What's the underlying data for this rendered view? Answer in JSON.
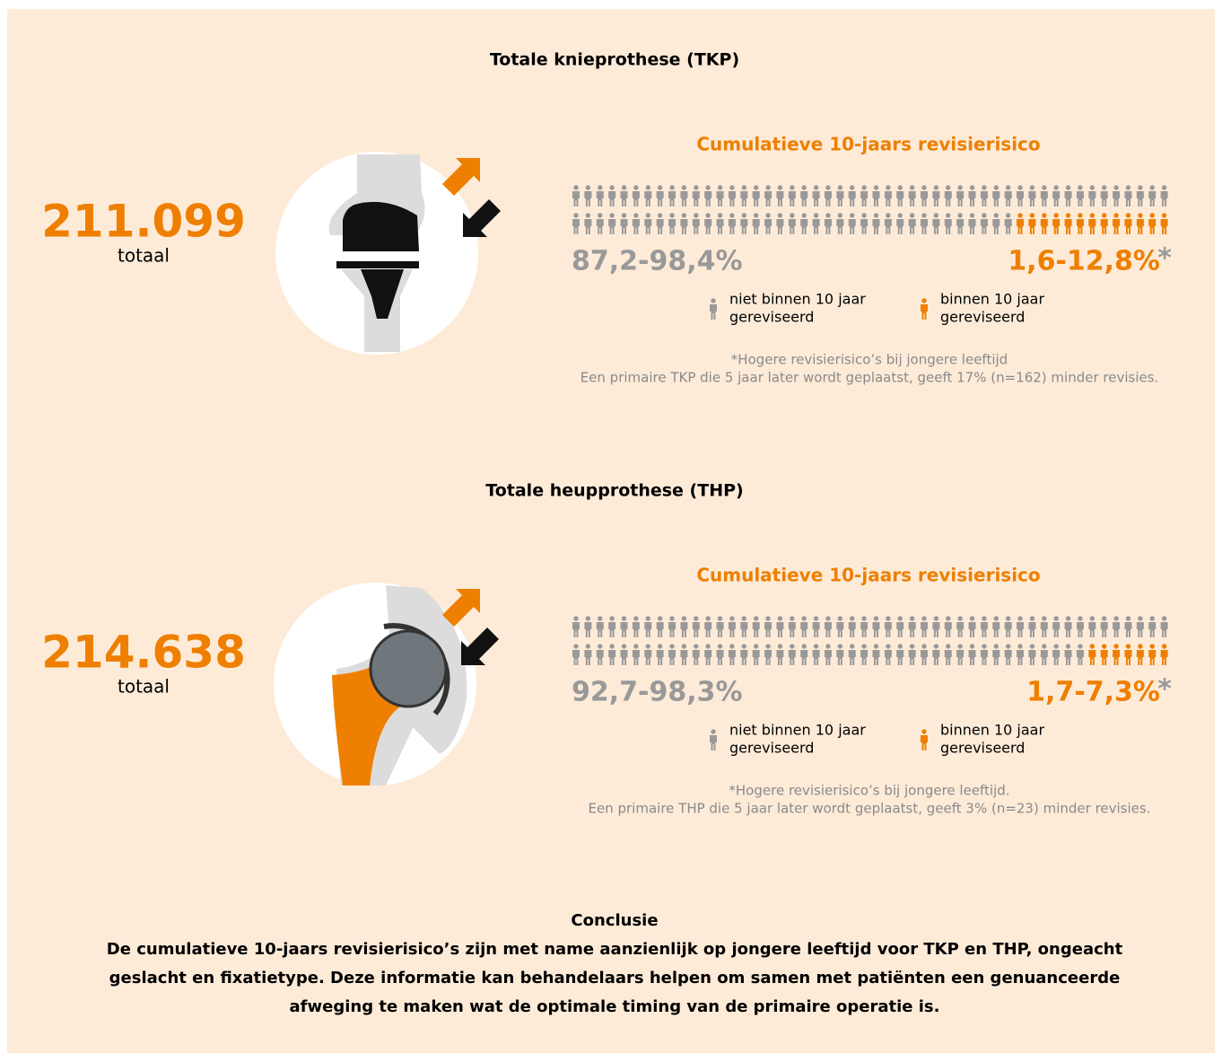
{
  "sections": [
    {
      "title": "Totale knieprothese (TKP)",
      "total": "211.099",
      "total_label": "totaal",
      "heading": "Cumulatieve 10-jaars revisierisico",
      "icon_array": {
        "total": 100,
        "revised": 13
      },
      "not_revised_range": "87,2-98,4%",
      "revised_range": "1,6-12,8%",
      "asterisk": "*",
      "legend": {
        "not_revised": [
          "niet binnen 10 jaar",
          "gereviseerd"
        ],
        "revised": [
          "binnen 10 jaar",
          "gereviseerd"
        ]
      },
      "notes": [
        "*Hogere revisierisico’s bij jongere leeftijd",
        "Een primaire TKP die 5 jaar later wordt geplaatst, geeft 17% (n=162) minder revisies."
      ]
    },
    {
      "title": "Totale heupprothese (THP)",
      "total": "214.638",
      "total_label": "totaal",
      "heading": "Cumulatieve 10-jaars revisierisico",
      "icon_array": {
        "total": 100,
        "revised": 7
      },
      "not_revised_range": "92,7-98,3%",
      "revised_range": "1,7-7,3%",
      "asterisk": "*",
      "legend": {
        "not_revised": [
          "niet binnen 10 jaar",
          "gereviseerd"
        ],
        "revised": [
          "binnen 10 jaar",
          "gereviseerd"
        ]
      },
      "notes": [
        "*Hogere revisierisico’s bij jongere leeftijd.",
        "Een primaire THP die 5 jaar later wordt geplaatst, geeft 3% (n=23) minder revisies."
      ]
    }
  ],
  "conclusion": {
    "title": "Conclusie",
    "lines": [
      "De cumulatieve 10-jaars revisierisico’s zijn met name aanzienlijk op jongere leeftijd voor TKP en THP, ongeacht",
      "geslacht en fixatietype. Deze informatie kan behandelaars helpen om samen met patiënten een genuanceerde",
      "afweging te maken wat de optimale timing van de primaire operatie is."
    ]
  }
}
